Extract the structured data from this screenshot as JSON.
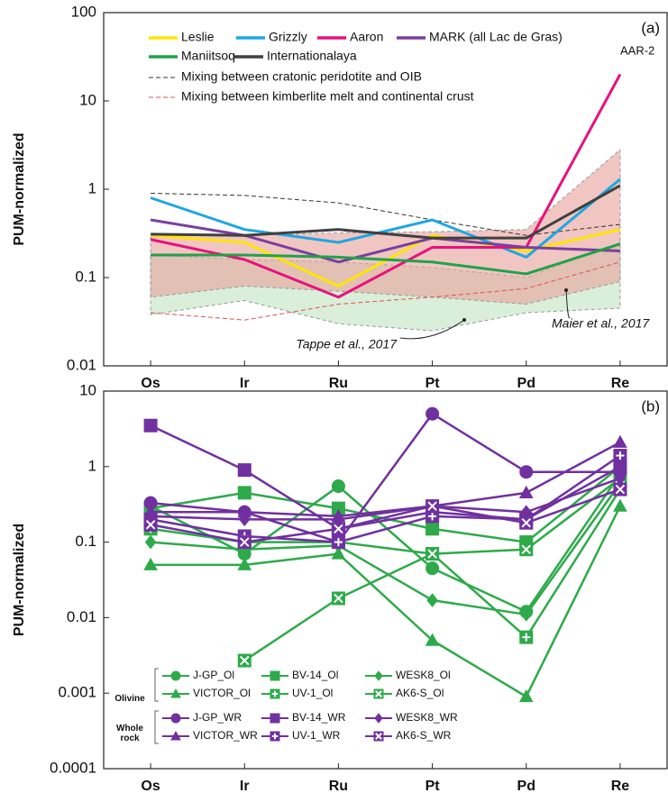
{
  "chart_data": [
    {
      "type": "line",
      "y_label": "PUM-normalized",
      "panel_label": "(a)",
      "log_scale": true,
      "categories": [
        "Os",
        "Ir",
        "Ru",
        "Pt",
        "Pd",
        "Re"
      ],
      "ylim": [
        0.01,
        100
      ],
      "yticks": [
        0.01,
        0.1,
        1,
        10,
        100
      ],
      "areas": [
        {
          "name": "Tappe et al., 2017",
          "color": "#bfe4bf",
          "upper": [
            0.18,
            0.16,
            0.15,
            0.13,
            0.1,
            0.25
          ],
          "lower": [
            0.038,
            0.055,
            0.03,
            0.025,
            0.04,
            0.045
          ]
        },
        {
          "name": "Maier et al., 2017",
          "color": "#e8a09a",
          "upper": [
            0.3,
            0.3,
            0.32,
            0.33,
            0.35,
            2.8
          ],
          "lower": [
            0.06,
            0.08,
            0.07,
            0.06,
            0.05,
            0.09
          ]
        }
      ],
      "annotations": [
        {
          "text": "AAR-2"
        }
      ],
      "series": [
        {
          "name": "Leslie",
          "color": "#ffe600",
          "values": [
            0.3,
            0.25,
            0.08,
            0.3,
            0.2,
            0.35
          ]
        },
        {
          "name": "Grizzly",
          "color": "#1ea7e1",
          "values": [
            0.8,
            0.35,
            0.25,
            0.45,
            0.17,
            1.3
          ]
        },
        {
          "name": "Aaron",
          "color": "#e6127d",
          "values": [
            0.27,
            0.16,
            0.06,
            0.22,
            0.22,
            20
          ]
        },
        {
          "name": "MARK (all Lac de Gras)",
          "color": "#7b3fa0",
          "values": [
            0.45,
            0.3,
            0.15,
            0.28,
            0.22,
            0.2
          ]
        },
        {
          "name": "Maniitsoq",
          "color": "#1ea34a",
          "values": [
            0.18,
            0.18,
            0.17,
            0.15,
            0.11,
            0.24
          ]
        },
        {
          "name": "Internationalaya",
          "color": "#404040",
          "values": [
            0.31,
            0.3,
            0.35,
            0.28,
            0.28,
            1.1
          ]
        },
        {
          "name": "Mixing between cratonic peridotite and OIB",
          "color": "#333333",
          "dashed": true,
          "values": [
            0.9,
            0.85,
            0.7,
            0.45,
            0.3,
            0.4
          ]
        },
        {
          "name": "Mixing between kimberlite melt and continental crust",
          "color": "#e05050",
          "dashed": true,
          "values": [
            0.04,
            0.033,
            0.05,
            0.06,
            0.075,
            0.15
          ]
        }
      ]
    },
    {
      "type": "line",
      "y_label": "PUM-normalized",
      "panel_label": "(b)",
      "log_scale": true,
      "categories": [
        "Os",
        "Ir",
        "Ru",
        "Pt",
        "Pd",
        "Re"
      ],
      "ylim": [
        0.0001,
        10
      ],
      "yticks": [
        0.0001,
        0.001,
        0.01,
        0.1,
        1,
        10
      ],
      "legend_groups": [
        "Olivine",
        "Whole rock"
      ],
      "series": [
        {
          "name": "J-GP_Ol",
          "color": "#2eaa4a",
          "marker": "circle",
          "values": [
            0.3,
            0.07,
            0.55,
            0.045,
            0.012,
            0.8
          ]
        },
        {
          "name": "VICTOR_Ol",
          "color": "#2eaa4a",
          "marker": "triangle",
          "values": [
            0.05,
            0.05,
            0.07,
            0.005,
            0.0009,
            0.3
          ]
        },
        {
          "name": "BV-14_Ol",
          "color": "#2eaa4a",
          "marker": "square",
          "values": [
            0.28,
            0.45,
            0.28,
            0.15,
            0.1,
            1.0
          ]
        },
        {
          "name": "UV-1_Ol",
          "color": "#2eaa4a",
          "marker": "plus",
          "values": [
            0.15,
            0.1,
            0.1,
            0.07,
            0.0055,
            0.5
          ]
        },
        {
          "name": "WESK8_Ol",
          "color": "#2eaa4a",
          "marker": "diamond",
          "values": [
            0.1,
            0.08,
            0.09,
            0.017,
            0.011,
            0.6
          ]
        },
        {
          "name": "AK6-S_Ol",
          "color": "#2eaa4a",
          "marker": "x",
          "values": [
            null,
            0.0027,
            0.018,
            0.07,
            0.08,
            0.7
          ]
        },
        {
          "name": "J-GP_WR",
          "color": "#7030a0",
          "marker": "circle",
          "values": [
            0.33,
            0.25,
            0.1,
            5,
            0.85,
            0.85
          ]
        },
        {
          "name": "VICTOR_WR",
          "color": "#7030a0",
          "marker": "triangle",
          "values": [
            0.25,
            0.25,
            0.22,
            0.3,
            0.45,
            2.1
          ]
        },
        {
          "name": "BV-14_WR",
          "color": "#7030a0",
          "marker": "square",
          "values": [
            3.5,
            0.9,
            0.15,
            0.25,
            0.2,
            1.0
          ]
        },
        {
          "name": "UV-1_WR",
          "color": "#7030a0",
          "marker": "plus",
          "values": [
            0.2,
            0.12,
            0.1,
            0.22,
            0.2,
            1.4
          ]
        },
        {
          "name": "WESK8_WR",
          "color": "#7030a0",
          "marker": "diamond",
          "values": [
            0.22,
            0.2,
            0.2,
            0.3,
            0.25,
            0.7
          ]
        },
        {
          "name": "AK6-S_WR",
          "color": "#7030a0",
          "marker": "x",
          "values": [
            0.17,
            0.1,
            0.15,
            0.3,
            0.18,
            0.5
          ]
        }
      ]
    }
  ]
}
